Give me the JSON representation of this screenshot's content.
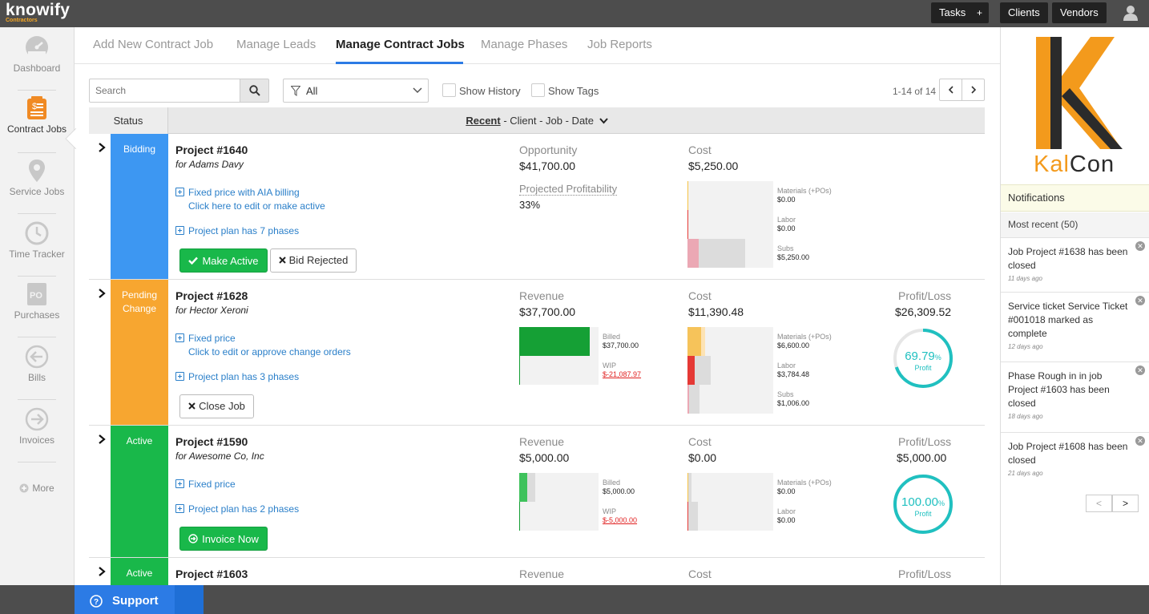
{
  "brand": {
    "name": "knowify",
    "sub": "Contractors"
  },
  "topbar": {
    "tasks": "Tasks",
    "tasks_plus": "+",
    "clients": "Clients",
    "vendors": "Vendors"
  },
  "sidebar": {
    "items": [
      {
        "label": "Dashboard",
        "icon": "dashboard-icon"
      },
      {
        "label": "Contract Jobs",
        "icon": "contract-jobs-icon"
      },
      {
        "label": "Service Jobs",
        "icon": "location-pin-icon"
      },
      {
        "label": "Time Tracker",
        "icon": "clock-icon"
      },
      {
        "label": "Purchases",
        "icon": "po-icon"
      },
      {
        "label": "Bills",
        "icon": "arrow-left-circle-icon"
      },
      {
        "label": "Invoices",
        "icon": "arrow-right-circle-icon"
      },
      {
        "label": "More",
        "icon": "plus-circle-icon"
      }
    ]
  },
  "tabs": [
    "Add New Contract Job",
    "Manage Leads",
    "Manage Contract Jobs",
    "Manage Phases",
    "Job Reports"
  ],
  "toolbar": {
    "search_placeholder": "Search",
    "filter_value": "All",
    "show_history": "Show History",
    "show_tags": "Show Tags",
    "pager": "1-14 of 14"
  },
  "table": {
    "status_header": "Status",
    "sort_active": "Recent",
    "sort_rest": " - Client - Job - Date"
  },
  "rows": [
    {
      "status": "Bidding",
      "status_color": "#3d97f2",
      "project": "Project #1640",
      "client": "for Adams Davy",
      "link1": "Fixed price with AIA billing",
      "link1_sub": "Click here to edit or make active",
      "link2": "Project plan has 7 phases",
      "btn1": "Make Active",
      "btn2": "Bid Rejected",
      "opp_label": "Opportunity",
      "opp_value": "$41,700.00",
      "proj_label": "Projected Profitability",
      "proj_value": "33%",
      "cost_label": "Cost",
      "cost_value": "$5,250.00",
      "cost_items": [
        {
          "label": "Materials (+POs)",
          "value": "$0.00",
          "fraction": 0
        },
        {
          "label": "Labor",
          "value": "$0.00",
          "fraction": 0
        },
        {
          "label": "Subs",
          "value": "$5,250.00",
          "fraction": 0.13
        }
      ]
    },
    {
      "status": "Pending Change",
      "status_color": "#f7a630",
      "project": "Project #1628",
      "client": "for Hector Xeroni",
      "link1": "Fixed price",
      "link1_sub": "Click to edit or approve change orders",
      "link2": "Project plan has 3 phases",
      "btn1": "Close Job",
      "rev_label": "Revenue",
      "rev_value": "$37,700.00",
      "billed_label": "Billed",
      "billed_value": "$37,700.00",
      "wip_label": "WIP",
      "wip_value": "$-21,087.97",
      "billed_fraction": 0.89,
      "cost_label": "Cost",
      "cost_value": "$11,390.48",
      "cost_items": [
        {
          "label": "Materials (+POs)",
          "value": "$6,600.00",
          "fraction": 0.16
        },
        {
          "label": "Labor",
          "value": "$3,784.48",
          "fraction": 0.09
        },
        {
          "label": "Subs",
          "value": "$1,006.00",
          "fraction": 0.03
        }
      ],
      "pl_label": "Profit/Loss",
      "pl_value": "$26,309.52",
      "profit_pct": "69.79",
      "profit_fraction": 0.6979,
      "profit_word": "Profit"
    },
    {
      "status": "Active",
      "status_color": "#19b84a",
      "project": "Project #1590",
      "client": "for Awesome Co, Inc",
      "link1": "Fixed price",
      "link2": "Project plan has 2 phases",
      "btn1": "Invoice Now",
      "rev_label": "Revenue",
      "rev_value": "$5,000.00",
      "billed_label": "Billed",
      "billed_value": "$5,000.00",
      "wip_label": "WIP",
      "wip_value": "$-5,000.00",
      "billed_fraction": 0.1,
      "cost_label": "Cost",
      "cost_value": "$0.00",
      "cost_items": [
        {
          "label": "Materials (+POs)",
          "value": "$0.00",
          "fraction": 0
        },
        {
          "label": "Labor",
          "value": "$0.00",
          "fraction": 0
        }
      ],
      "pl_label": "Profit/Loss",
      "pl_value": "$5,000.00",
      "profit_pct": "100.00",
      "profit_fraction": 1.0,
      "profit_word": "Profit"
    },
    {
      "status": "Active",
      "status_color": "#19b84a",
      "project": "Project #1603",
      "rev_label": "Revenue",
      "cost_label": "Cost",
      "pl_label": "Profit/Loss"
    }
  ],
  "company_logo": {
    "name_part1": "Kal",
    "name_part2": "Con"
  },
  "notifications": {
    "title": "Notifications",
    "recent": "Most recent (50)",
    "items": [
      {
        "text": "Job Project #1638 has been closed",
        "date": "11 days ago"
      },
      {
        "text": "Service ticket Service Ticket #001018 marked as complete",
        "date": "12 days ago"
      },
      {
        "text": "Phase Rough in in job Project #1603 has been closed",
        "date": "18 days ago"
      },
      {
        "text": "Job Project #1608 has been closed",
        "date": "21 days ago"
      }
    ],
    "prev": "<",
    "next": ">"
  },
  "support": "Support"
}
